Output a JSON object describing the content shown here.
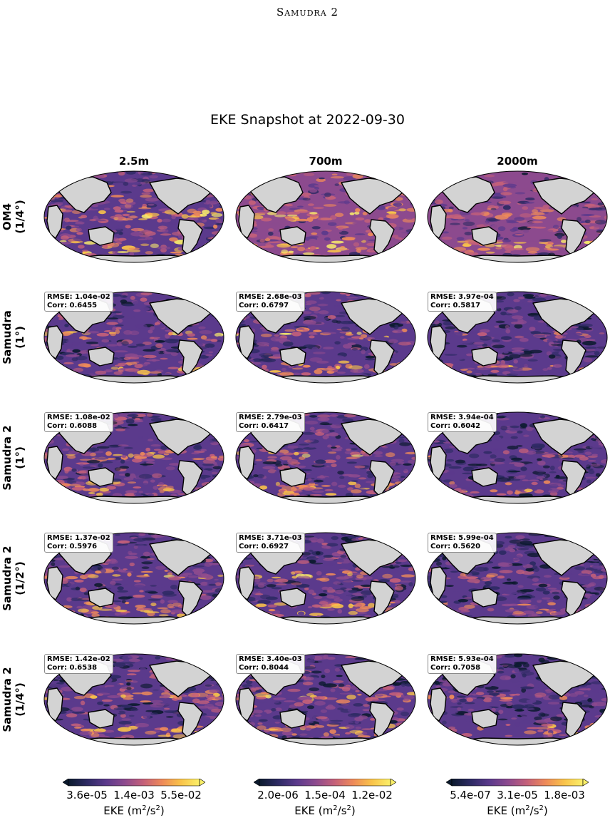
{
  "header": {
    "running_title": "Samudra 2"
  },
  "figure": {
    "title": "EKE Snapshot at 2022-09-30",
    "columns": [
      "2.5m",
      "700m",
      "2000m"
    ],
    "rows": [
      {
        "label_line1": "OM4",
        "label_line2": "(1/4°)",
        "is_reference": true
      },
      {
        "label_line1": "Samudra",
        "label_line2": "(1°)"
      },
      {
        "label_line1": "Samudra 2",
        "label_line2": "(1°)"
      },
      {
        "label_line1": "Samudra 2",
        "label_line2": "(1/2°)"
      },
      {
        "label_line1": "Samudra 2",
        "label_line2": "(1/4°)"
      }
    ],
    "stats": [
      null,
      [
        {
          "rmse": "RMSE: 1.04e-02",
          "corr": "Corr: 0.6455"
        },
        {
          "rmse": "RMSE: 2.68e-03",
          "corr": "Corr: 0.6797"
        },
        {
          "rmse": "RMSE: 3.97e-04",
          "corr": "Corr: 0.5817"
        }
      ],
      [
        {
          "rmse": "RMSE: 1.08e-02",
          "corr": "Corr: 0.6088"
        },
        {
          "rmse": "RMSE: 2.79e-03",
          "corr": "Corr: 0.6417"
        },
        {
          "rmse": "RMSE: 3.94e-04",
          "corr": "Corr: 0.6042"
        }
      ],
      [
        {
          "rmse": "RMSE: 1.37e-02",
          "corr": "Corr: 0.5976"
        },
        {
          "rmse": "RMSE: 3.71e-03",
          "corr": "Corr: 0.6927"
        },
        {
          "rmse": "RMSE: 5.99e-04",
          "corr": "Corr: 0.5620"
        }
      ],
      [
        {
          "rmse": "RMSE: 1.42e-02",
          "corr": "Corr: 0.6538"
        },
        {
          "rmse": "RMSE: 3.40e-03",
          "corr": "Corr: 0.8044"
        },
        {
          "rmse": "RMSE: 5.93e-04",
          "corr": "Corr: 0.7058"
        }
      ]
    ],
    "colorbars": [
      {
        "ticks": [
          "3.6e-05",
          "1.4e-03",
          "5.5e-02"
        ],
        "label": "EKE (m",
        "label_exp": "2",
        "label_mid": "/s",
        "label_end": ")"
      },
      {
        "ticks": [
          "2.0e-06",
          "1.5e-04",
          "1.2e-02"
        ],
        "label": "EKE (m",
        "label_exp": "2",
        "label_mid": "/s",
        "label_end": ")"
      },
      {
        "ticks": [
          "5.4e-07",
          "3.1e-05",
          "1.8e-03"
        ],
        "label": "EKE (m",
        "label_exp": "2",
        "label_mid": "/s",
        "label_end": ")"
      }
    ],
    "colormap": [
      "#0b1a2e",
      "#2d2a63",
      "#5b3a8c",
      "#8c4a8e",
      "#c4607a",
      "#ee8a5a",
      "#f9c34a",
      "#fbf06a"
    ],
    "land_color": "#d3d3d3"
  }
}
